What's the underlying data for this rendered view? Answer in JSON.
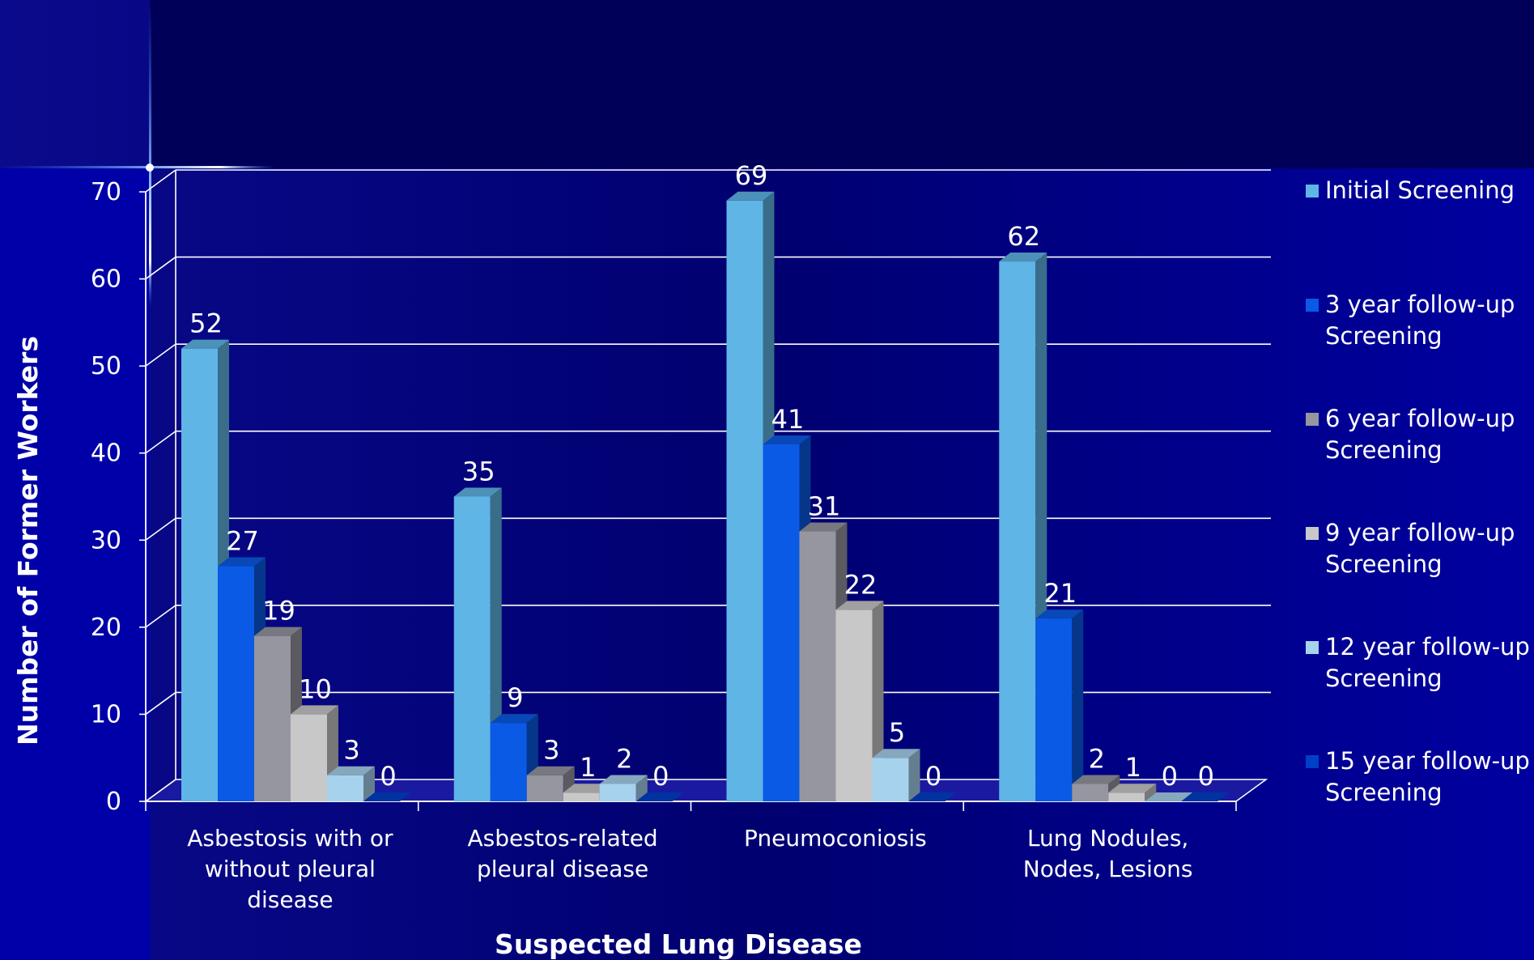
{
  "chart_data": {
    "type": "bar",
    "title": "",
    "xlabel": "Suspected Lung Disease",
    "ylabel": "Number of Former Workers",
    "ylim": [
      0,
      70
    ],
    "yticks": [
      0,
      10,
      20,
      30,
      40,
      50,
      60,
      70
    ],
    "categories": [
      [
        "Asbestosis with or",
        "without pleural",
        "disease"
      ],
      [
        "Asbestos-related",
        "pleural disease"
      ],
      [
        "Pneumoconiosis"
      ],
      [
        "Lung Nodules,",
        "Nodes, Lesions"
      ]
    ],
    "series": [
      {
        "name": [
          "Initial Screening"
        ],
        "color": "#5fb5e6",
        "values": [
          52,
          35,
          69,
          62
        ]
      },
      {
        "name": [
          "3 year follow-up",
          "Screening"
        ],
        "color": "#0a5ae6",
        "values": [
          27,
          9,
          41,
          21
        ]
      },
      {
        "name": [
          "6 year follow-up",
          "Screening"
        ],
        "color": "#9696a0",
        "values": [
          19,
          3,
          31,
          2
        ]
      },
      {
        "name": [
          "9 year follow-up",
          "Screening"
        ],
        "color": "#c8c8c8",
        "values": [
          10,
          1,
          22,
          1
        ]
      },
      {
        "name": [
          "12 year follow-up",
          "Screening"
        ],
        "color": "#a6d2ee",
        "values": [
          3,
          2,
          5,
          0
        ]
      },
      {
        "name": [
          "15 year follow-up",
          "Screening"
        ],
        "color": "#0040c8",
        "values": [
          0,
          0,
          0,
          0
        ]
      }
    ],
    "data_labels": true,
    "grid": true,
    "legend": "right",
    "three_d": true
  }
}
